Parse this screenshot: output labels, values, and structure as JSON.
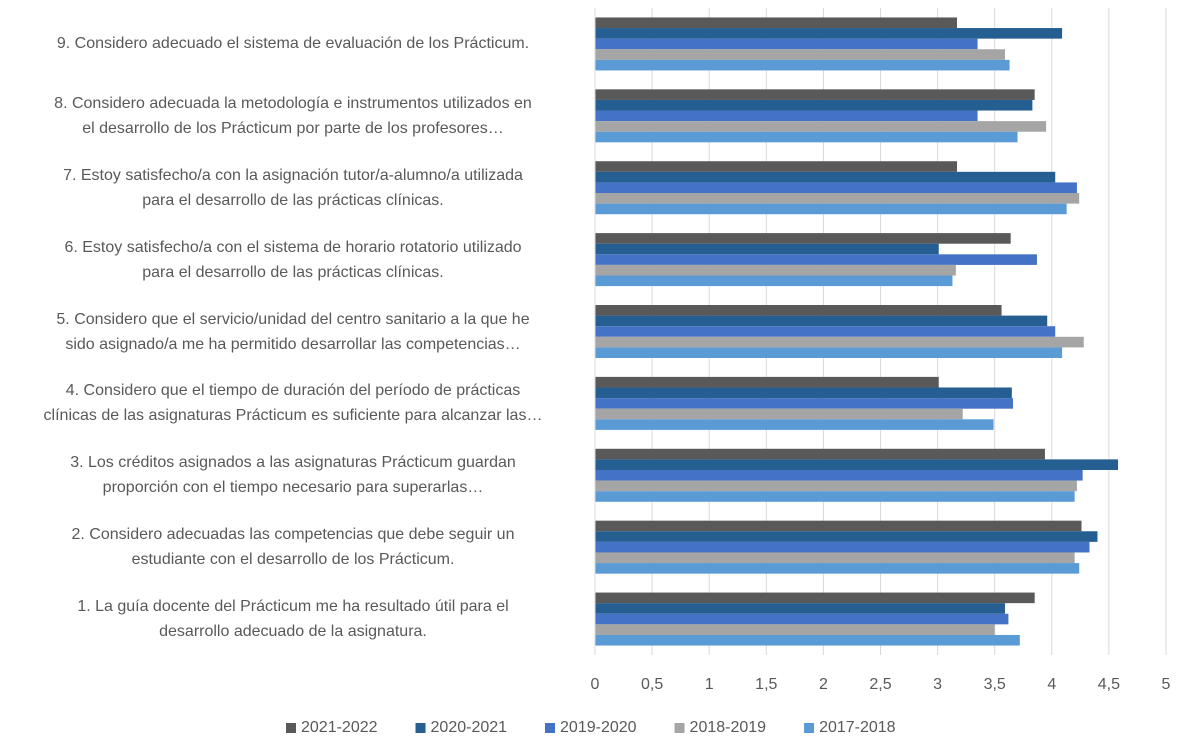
{
  "chart_data": {
    "type": "bar",
    "orientation": "horizontal",
    "categories": [
      "1. La guía docente del Prácticum me ha resultado útil para el\ndesarrollo adecuado de la asignatura.",
      "2. Considero adecuadas las competencias que debe seguir un\nestudiante con el desarrollo de los Prácticum.",
      "3. Los créditos asignados a las asignaturas Prácticum guardan\nproporción con el tiempo necesario para superarlas…",
      "4. Considero que el tiempo de duración del período de prácticas\nclínicas de las asignaturas Prácticum es suficiente para alcanzar las…",
      "5. Considero que el servicio/unidad del centro sanitario a la que he\nsido asignado/a me ha permitido desarrollar las competencias…",
      "6. Estoy satisfecho/a con el sistema de horario rotatorio utilizado\npara el desarrollo de las prácticas clínicas.",
      "7. Estoy satisfecho/a con la asignación tutor/a-alumno/a utilizada\npara el desarrollo de las prácticas clínicas.",
      "8. Considero adecuada la metodología e instrumentos utilizados en\nel desarrollo de los Prácticum por parte de los profesores…",
      "9. Considero adecuado el sistema de evaluación de los Prácticum."
    ],
    "series": [
      {
        "name": "2021-2022",
        "color": "#595959",
        "values": [
          3.85,
          4.26,
          3.94,
          3.01,
          3.56,
          3.64,
          3.17,
          3.85,
          3.17
        ]
      },
      {
        "name": "2020-2021",
        "color": "#255e91",
        "values": [
          3.59,
          4.4,
          4.58,
          3.65,
          3.96,
          3.01,
          4.03,
          3.83,
          4.09
        ]
      },
      {
        "name": "2019-2020",
        "color": "#4472c4",
        "values": [
          3.62,
          4.33,
          4.27,
          3.66,
          4.03,
          3.87,
          4.22,
          3.35,
          3.35
        ]
      },
      {
        "name": "2018-2019",
        "color": "#a5a5a5",
        "values": [
          3.5,
          4.2,
          4.22,
          3.22,
          4.28,
          3.16,
          4.24,
          3.95,
          3.59
        ]
      },
      {
        "name": "2017-2018",
        "color": "#5b9bd5",
        "values": [
          3.72,
          4.24,
          4.2,
          3.49,
          4.09,
          3.13,
          4.13,
          3.7,
          3.63
        ]
      }
    ],
    "xlim": [
      0,
      5
    ],
    "xticks": [
      0,
      {
        "value": 0.5,
        "label": "0,5"
      },
      1,
      {
        "value": 1.5,
        "label": "1,5"
      },
      2,
      {
        "value": 2.5,
        "label": "2,5"
      },
      3,
      {
        "value": 3.5,
        "label": "3,5"
      },
      4,
      {
        "value": 4.5,
        "label": "4,5"
      },
      5
    ],
    "grid": true,
    "legend": "bottom"
  }
}
